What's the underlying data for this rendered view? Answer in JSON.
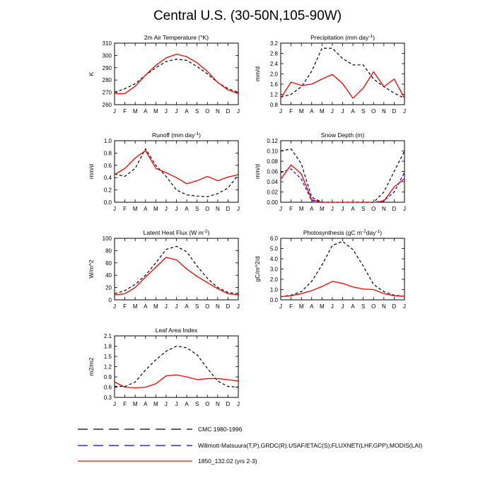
{
  "title": "Central U.S. (30-50N,105-90W)",
  "months": [
    "J",
    "F",
    "M",
    "A",
    "M",
    "J",
    "J",
    "A",
    "S",
    "O",
    "N",
    "D",
    "J"
  ],
  "colors": {
    "cmc": "#000000",
    "obs": "#0000ff",
    "model": "#ff0000"
  },
  "legend": [
    {
      "key": "cmc",
      "label": "CMC 1980-1996",
      "dash": "dashed",
      "color": "#000000"
    },
    {
      "key": "obs",
      "label": "Willmott-Matsuura(T,P),GRDC(R),USAF/ETAC(S),FLUXNET(LHF,GPP),MODIS(LAI)",
      "dash": "dashed",
      "color": "#0000ff"
    },
    {
      "key": "model",
      "label": "1850_132.02 (yrs 2-3)",
      "dash": "solid",
      "color": "#ff0000"
    }
  ],
  "chart_data": [
    {
      "id": "t2m",
      "type": "line",
      "title": "2m Air Temperature (°K)",
      "ylabel": "K",
      "ylim": [
        260,
        310
      ],
      "yticks": [
        "260",
        "270",
        "280",
        "290",
        "300",
        "310"
      ],
      "series": [
        {
          "name": "CMC 1980-1996",
          "style": "cmc",
          "values": [
            270,
            273,
            277,
            284,
            290,
            295,
            297,
            296,
            291,
            285,
            278,
            273,
            270
          ]
        },
        {
          "name": "1850_132.02 (yrs 2-3)",
          "style": "model",
          "values": [
            269,
            269,
            275,
            284,
            292,
            298,
            301,
            299,
            294,
            287,
            278,
            272,
            269
          ]
        }
      ]
    },
    {
      "id": "precip",
      "type": "line",
      "title": "Precipitation (mm day-1)",
      "ylabel": "mm/d",
      "ylim": [
        0.8,
        3.2
      ],
      "yticks": [
        "0.8",
        "1.2",
        "1.6",
        "2.0",
        "2.4",
        "2.8",
        "3.2"
      ],
      "series": [
        {
          "name": "CMC 1980-1996",
          "style": "cmc",
          "values": [
            1.1,
            1.2,
            1.5,
            2.1,
            3.0,
            3.0,
            2.6,
            2.35,
            2.35,
            1.8,
            1.5,
            1.25,
            1.05
          ]
        },
        {
          "name": "1850_132.02 (yrs 2-3)",
          "style": "model",
          "values": [
            1.05,
            1.68,
            1.55,
            1.6,
            1.8,
            1.98,
            1.62,
            1.05,
            1.45,
            2.08,
            1.5,
            1.8,
            1.05
          ]
        }
      ]
    },
    {
      "id": "runoff",
      "type": "line",
      "title": "Runoff (mm day-1)",
      "ylabel": "mm/d",
      "ylim": [
        0.0,
        1.0
      ],
      "yticks": [
        "0.0",
        "0.2",
        "0.4",
        "0.6",
        "0.8",
        "1.0"
      ],
      "series": [
        {
          "name": "CMC 1980-1996",
          "style": "cmc",
          "values": [
            0.46,
            0.42,
            0.55,
            0.87,
            0.6,
            0.42,
            0.2,
            0.12,
            0.1,
            0.09,
            0.14,
            0.23,
            0.45
          ]
        },
        {
          "name": "1850_132.02 (yrs 2-3)",
          "style": "model",
          "values": [
            0.45,
            0.55,
            0.72,
            0.84,
            0.55,
            0.48,
            0.4,
            0.3,
            0.35,
            0.42,
            0.35,
            0.41,
            0.45
          ]
        }
      ]
    },
    {
      "id": "snow",
      "type": "line",
      "title": "Snow Depth (m)",
      "ylabel": "mm/d",
      "ylim": [
        0.0,
        0.12
      ],
      "yticks": [
        "0.00",
        "0.02",
        "0.04",
        "0.06",
        "0.08",
        "0.10",
        "0.12"
      ],
      "series": [
        {
          "name": "CMC 1980-1996",
          "style": "cmc",
          "values": [
            0.1,
            0.104,
            0.075,
            0.01,
            0,
            0,
            0,
            0,
            0,
            0,
            0.02,
            0.06,
            0.1
          ]
        },
        {
          "name": "Willmott-Matsuura(T,P),GRDC(R),USAF/ETAC(S),FLUXNET(LHF,GPP),MODIS(LAI)",
          "style": "obs",
          "values": [
            0.058,
            0.065,
            0.045,
            0.003,
            0,
            0,
            0,
            0,
            0,
            0,
            0.003,
            0.02,
            0.058
          ]
        },
        {
          "name": "1850_132.02 (yrs 2-3)",
          "style": "model",
          "values": [
            0.045,
            0.073,
            0.055,
            0.005,
            0,
            0,
            0,
            0,
            0,
            0,
            0.002,
            0.03,
            0.046
          ]
        }
      ]
    },
    {
      "id": "lhf",
      "type": "line",
      "title": "Latent Heat Flux (W m-2)",
      "ylabel": "W/m^2",
      "ylim": [
        0,
        100
      ],
      "yticks": [
        "0",
        "20",
        "40",
        "60",
        "80",
        "100"
      ],
      "series": [
        {
          "name": "CMC 1980-1996",
          "style": "cmc",
          "values": [
            10,
            15,
            25,
            40,
            60,
            82,
            87,
            78,
            55,
            35,
            20,
            12,
            10
          ]
        },
        {
          "name": "1850_132.02 (yrs 2-3)",
          "style": "model",
          "values": [
            8,
            10,
            20,
            37,
            53,
            69,
            65,
            50,
            38,
            28,
            18,
            10,
            8
          ]
        }
      ]
    },
    {
      "id": "gpp",
      "type": "line",
      "title": "Photosynthesis (gC m-2day-1)",
      "ylabel": "gC/m^2/d",
      "ylim": [
        0.0,
        6.0
      ],
      "yticks": [
        "0.0",
        "1.0",
        "2.0",
        "3.0",
        "4.0",
        "5.0",
        "6.0"
      ],
      "series": [
        {
          "name": "CMC 1980-1996",
          "style": "cmc",
          "values": [
            0.3,
            0.45,
            0.8,
            1.8,
            3.4,
            5.3,
            5.7,
            4.9,
            3.3,
            1.5,
            0.8,
            0.45,
            0.35
          ]
        },
        {
          "name": "1850_132.02 (yrs 2-3)",
          "style": "model",
          "values": [
            0.3,
            0.4,
            0.6,
            0.9,
            1.3,
            1.8,
            1.6,
            1.25,
            1.05,
            1.0,
            0.6,
            0.4,
            0.35
          ]
        }
      ]
    },
    {
      "id": "lai",
      "type": "line",
      "title": "Leaf Area Index",
      "ylabel": "m2/m2",
      "ylim": [
        0.3,
        2.1
      ],
      "yticks": [
        "0.3",
        "0.6",
        "0.9",
        "1.2",
        "1.5",
        "1.8",
        "2.1"
      ],
      "series": [
        {
          "name": "CMC 1980-1996",
          "style": "cmc",
          "values": [
            0.62,
            0.62,
            0.75,
            1.1,
            1.4,
            1.65,
            1.8,
            1.75,
            1.55,
            1.15,
            0.78,
            0.62,
            0.6
          ]
        },
        {
          "name": "1850_132.02 (yrs 2-3)",
          "style": "model",
          "values": [
            0.75,
            0.6,
            0.58,
            0.6,
            0.7,
            0.93,
            0.96,
            0.9,
            0.82,
            0.85,
            0.85,
            0.82,
            0.78
          ]
        }
      ]
    }
  ]
}
